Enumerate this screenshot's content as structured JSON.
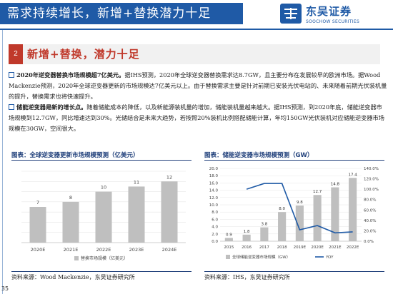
{
  "header": {
    "title": "需求持续增长，新增+替换潜力十足",
    "logo_cn": "东吴证券",
    "logo_en": "SOOCHOW SECURITIES"
  },
  "section": {
    "number": "2",
    "title": "新增+替换，潜力十足"
  },
  "paragraphs": [
    {
      "lead": "2020年逆变器替换市场规模超7亿美元。",
      "text": "据IHS预测，2020年全球逆变器替换需求达8.7GW，且主要分布在发展较早的欧洲市场。据Wood Mackenzie预测，2020年全球逆变器更新的市场规模达7亿美元以上。由于替换需求主要是针对前期已安装光伏电站的、未来随着前期光伏装机量的提升，替换需求也将快速提升。"
    },
    {
      "lead": "储能逆变器是新的增长点。",
      "text": "随着储能成本的降低，以及新能源装机量的增加，储能装机量越来越大。据IHS预测，到2020年底，储能逆变器市场规模到12.7GW，同比增速达到30%。光储结合是未来大趋势，若按照20%装机比例搭配储能计算，年均150GW光伏装机对应储能逆变器市场规模在30GW，空间很大。"
    }
  ],
  "figures": [
    {
      "label": "图表：",
      "title": "全球逆变器更新市场规模预测（亿美元）",
      "source": "资料来源：Wood Mackenzie，东吴证券研究所"
    },
    {
      "label": "图表：",
      "title": "储能逆变器市场规模预测（GW）",
      "source": "资料来源：IHS，东吴证券研究所"
    }
  ],
  "page_number": "35",
  "chart_data": [
    {
      "type": "bar",
      "categories": [
        "2020E",
        "2021E",
        "2022E",
        "2023E",
        "2024E"
      ],
      "series": [
        {
          "name": "替换市场规模（亿美元）",
          "values": [
            7,
            8,
            10,
            11,
            12
          ]
        }
      ],
      "ylim": [
        0,
        14
      ],
      "color": "#bfbfbf"
    },
    {
      "type": "bar",
      "categories": [
        "2015",
        "2016",
        "2017",
        "2018",
        "2019E",
        "2020E",
        "2021E",
        "2022E"
      ],
      "series": [
        {
          "name": "全球储能逆变器市场规模（GW）",
          "values": [
            0.9,
            1.8,
            3.8,
            8.0,
            9.8,
            12.7,
            14.8,
            17.4
          ]
        },
        {
          "name": "YOY",
          "values": [
            null,
            100,
            111,
            111,
            22,
            30,
            16,
            18
          ]
        }
      ],
      "ylim_left": [
        0,
        20
      ],
      "ylim_right": [
        0,
        140
      ],
      "left_ticks": [
        "0.0",
        "2.0",
        "4.0",
        "6.0",
        "8.0",
        "10.0",
        "12.0",
        "14.0",
        "16.0",
        "18.0",
        "20.0"
      ],
      "right_ticks": [
        "0.0%",
        "20.0%",
        "40.0%",
        "60.0%",
        "80.0%",
        "100.0%",
        "120.0%",
        "140.0%"
      ],
      "bar_color": "#bfbfbf",
      "line_color": "#1f5aa6"
    }
  ]
}
